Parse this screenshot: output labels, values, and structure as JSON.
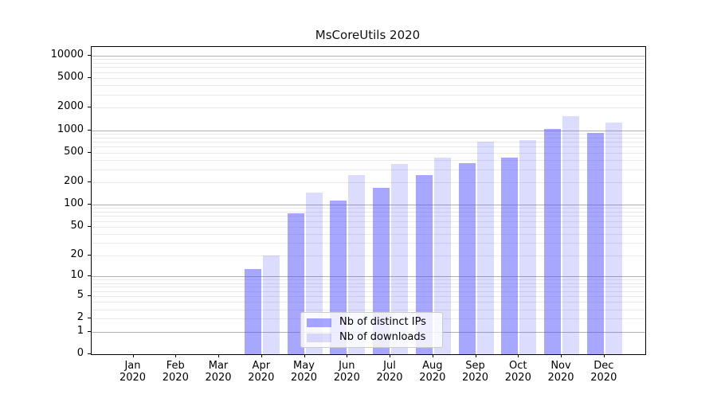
{
  "title": "MsCoreUtils 2020",
  "chart_data": {
    "type": "bar",
    "title": "MsCoreUtils 2020",
    "categories": [
      "Jan 2020",
      "Feb 2020",
      "Mar 2020",
      "Apr 2020",
      "May 2020",
      "Jun 2020",
      "Jul 2020",
      "Aug 2020",
      "Sep 2020",
      "Oct 2020",
      "Nov 2020",
      "Dec 2020"
    ],
    "x_months": [
      "Jan",
      "Feb",
      "Mar",
      "Apr",
      "May",
      "Jun",
      "Jul",
      "Aug",
      "Sep",
      "Oct",
      "Nov",
      "Dec"
    ],
    "x_year": "2020",
    "series": [
      {
        "name": "Nb of distinct IPs",
        "color": "#5050ff",
        "opacity": 0.5,
        "values": [
          0,
          0,
          0,
          13,
          76,
          114,
          168,
          250,
          360,
          432,
          1035,
          920
        ]
      },
      {
        "name": "Nb of downloads",
        "color": "#5050ff",
        "opacity": 0.2,
        "values": [
          0,
          0,
          0,
          20,
          146,
          252,
          350,
          425,
          710,
          740,
          1555,
          1280
        ]
      }
    ],
    "y_scale": "log10(1+v)",
    "y_ticks": [
      0,
      1,
      2,
      5,
      10,
      20,
      50,
      100,
      200,
      500,
      1000,
      2000,
      5000,
      10000
    ],
    "ylim": [
      0,
      13000
    ],
    "grid": "horizontal minor+major",
    "legend_position": "lower center"
  },
  "legend": {
    "items": [
      {
        "label": "Nb of distinct IPs"
      },
      {
        "label": "Nb of downloads"
      }
    ]
  },
  "colors": {
    "bar_base": "#5050ff",
    "grid_minor": "#e9e9e9",
    "grid_major": "#b0b0b0",
    "axis": "#000000",
    "background": "#ffffff",
    "legend_border": "#cccccc"
  }
}
